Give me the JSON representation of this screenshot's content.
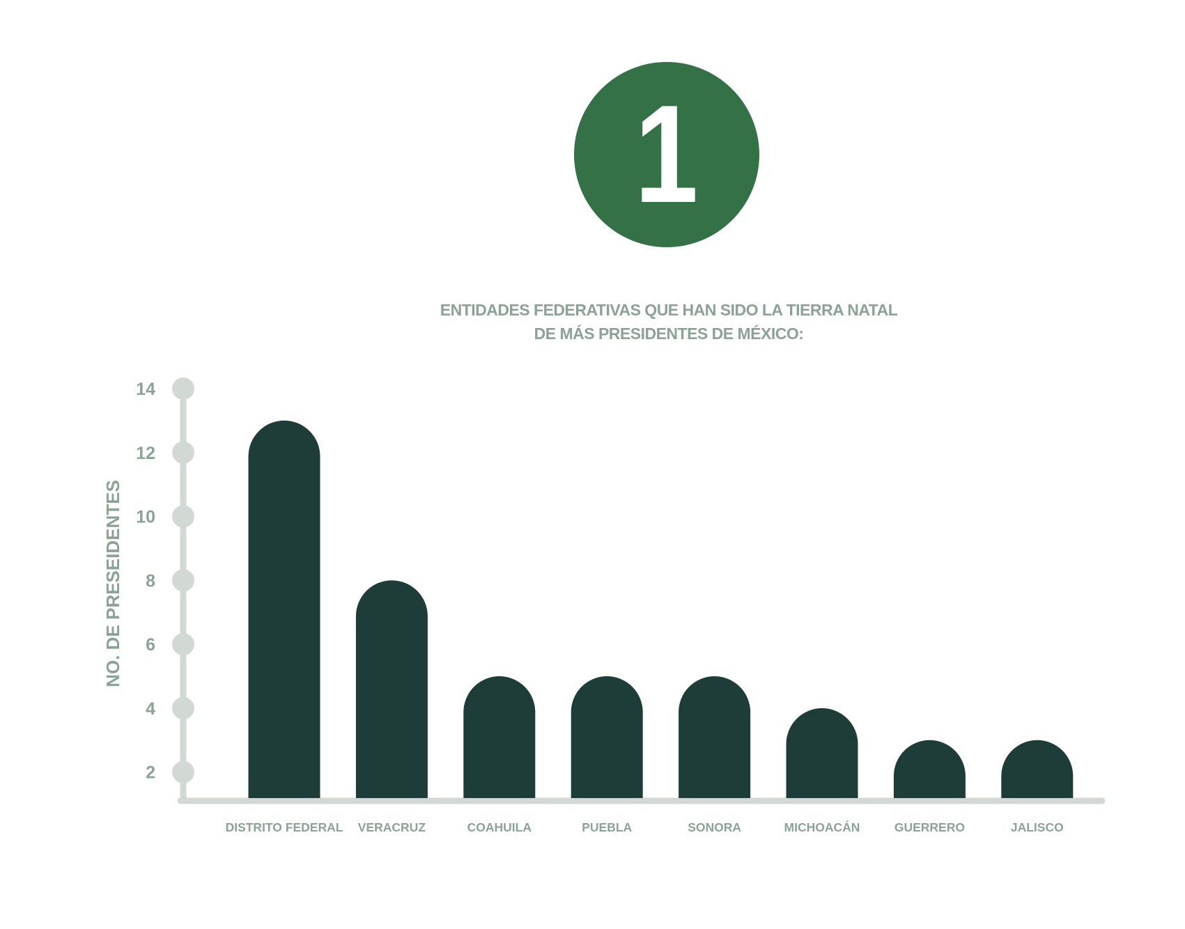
{
  "badge": {
    "number": "1"
  },
  "title_lines": [
    "ENTIDADES FEDERATIVAS QUE HAN SIDO LA TIERRA NATAL",
    "DE MÁS PRESIDENTES DE MÉXICO:"
  ],
  "colors": {
    "badge": "#357146",
    "bar": "#1e3d38",
    "axis": "#d2d9d5",
    "text": "#8ba396"
  },
  "chart_data": {
    "type": "bar",
    "title": "ENTIDADES FEDERATIVAS QUE HAN SIDO LA TIERRA NATAL DE MÁS PRESIDENTES DE MÉXICO:",
    "xlabel": "",
    "ylabel": "NO. DE PRESEIDENTES",
    "categories": [
      "DISTRITO FEDERAL",
      "VERACRUZ",
      "COAHUILA",
      "PUEBLA",
      "SONORA",
      "MICHOACÁN",
      "GUERRERO",
      "JALISCO"
    ],
    "values": [
      13,
      8,
      5,
      5,
      5,
      4,
      3,
      3
    ],
    "yticks": [
      2,
      4,
      6,
      8,
      10,
      12,
      14
    ],
    "ylim": [
      1.1,
      14
    ],
    "grid": false,
    "legend": "none"
  }
}
